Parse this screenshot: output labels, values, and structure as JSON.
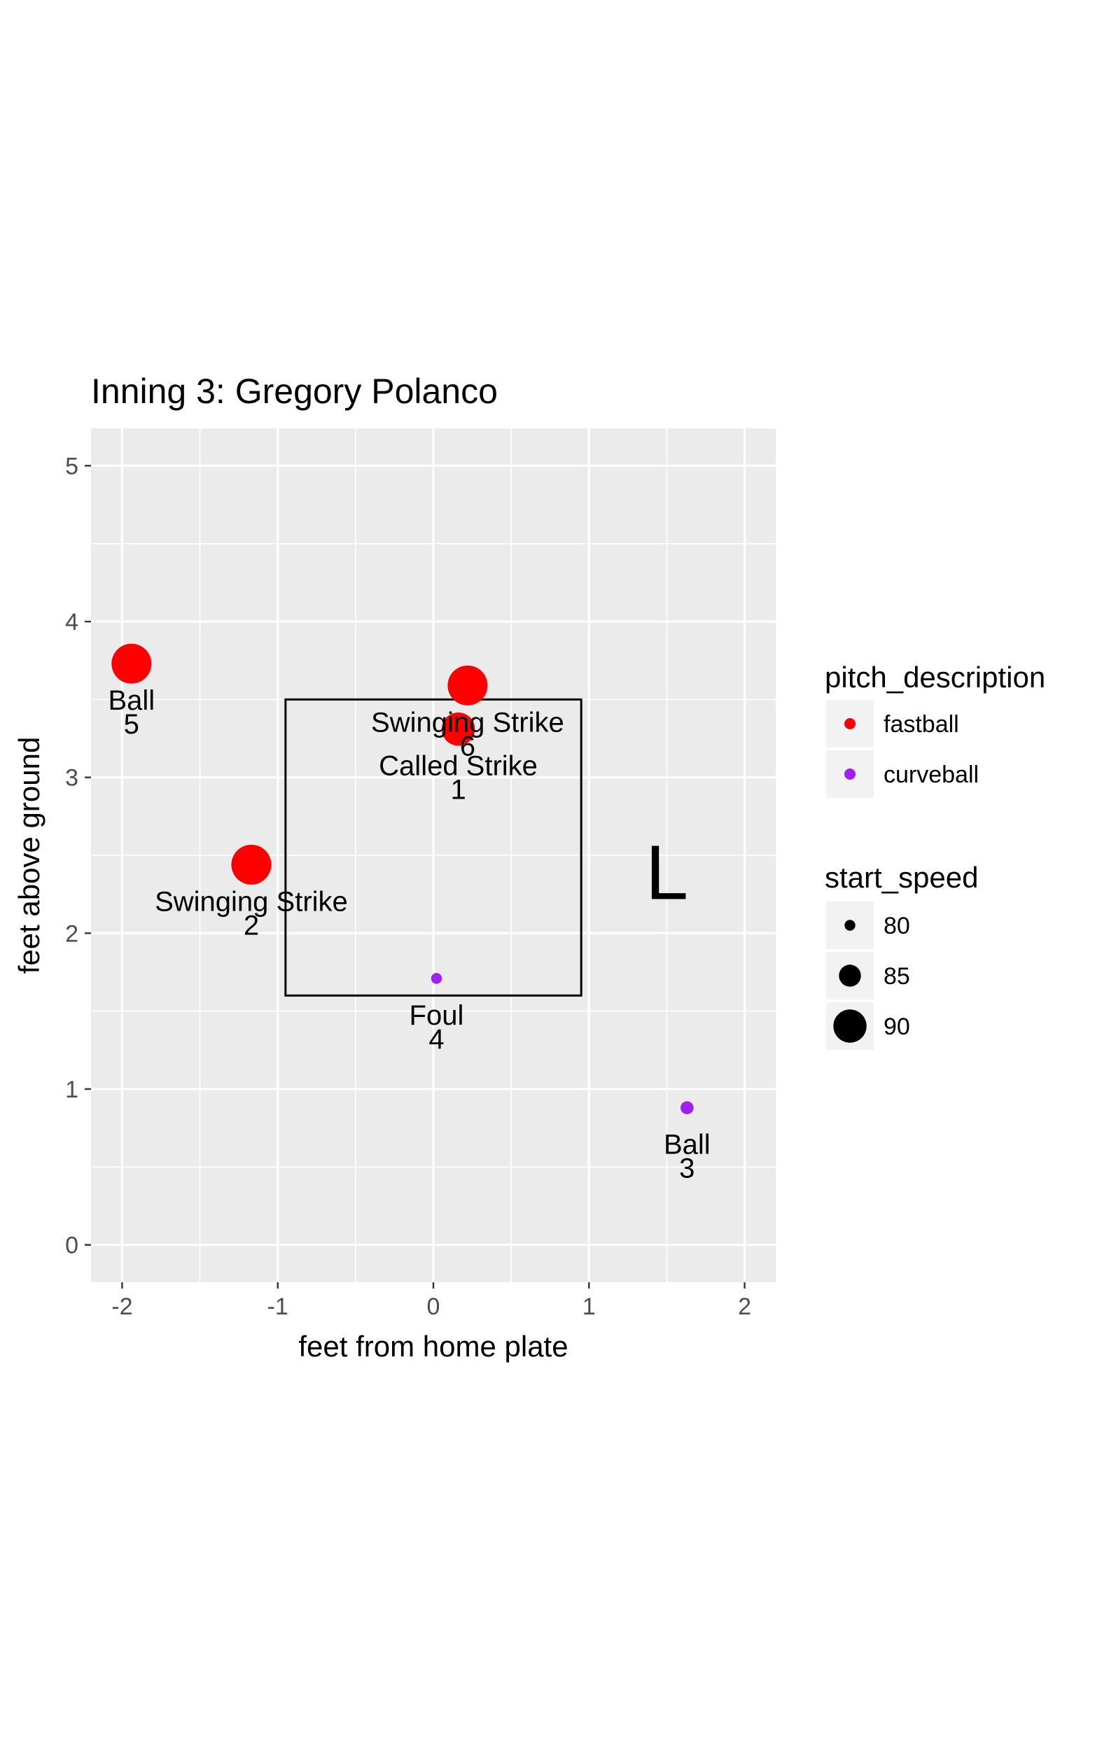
{
  "chart_data": {
    "type": "scatter",
    "title": "Inning 3: Gregory Polanco",
    "xlabel": "feet from home plate",
    "ylabel": "feet above ground",
    "xlim": [
      -2.2,
      2.2
    ],
    "ylim": [
      -0.24,
      5.24
    ],
    "x_ticks": [
      -2,
      -1,
      0,
      1,
      2
    ],
    "y_ticks": [
      0,
      1,
      2,
      3,
      4,
      5
    ],
    "grid": true,
    "strike_zone": {
      "x": [
        -0.95,
        0.95
      ],
      "y": [
        1.6,
        3.5
      ]
    },
    "annotation": {
      "text": "L",
      "x": 1.5,
      "y": 2.4
    },
    "colors": {
      "fastball": "#ff0000",
      "curveball": "#a020f0",
      "panel": "#ebebeb",
      "grid": "#ffffff"
    },
    "points": [
      {
        "x": 0.16,
        "y": 3.31,
        "description": "fastball",
        "speed": 90,
        "outcome": "Called Strike",
        "number": "1"
      },
      {
        "x": -1.17,
        "y": 2.44,
        "description": "fastball",
        "speed": 93,
        "outcome": "Swinging Strike",
        "number": "2"
      },
      {
        "x": 1.63,
        "y": 0.88,
        "description": "curveball",
        "speed": 81,
        "outcome": "Ball",
        "number": "3"
      },
      {
        "x": 0.02,
        "y": 1.71,
        "description": "curveball",
        "speed": 80,
        "outcome": "Foul",
        "number": "4"
      },
      {
        "x": -1.94,
        "y": 3.73,
        "description": "fastball",
        "speed": 93,
        "outcome": "Ball",
        "number": "5"
      },
      {
        "x": 0.22,
        "y": 3.59,
        "description": "fastball",
        "speed": 93,
        "outcome": "Swinging Strike",
        "number": "6"
      }
    ],
    "legend": {
      "placement": "right",
      "color_title": "pitch_description",
      "color_items": [
        {
          "label": "fastball",
          "color": "#ff0000"
        },
        {
          "label": "curveball",
          "color": "#a020f0"
        }
      ],
      "size_title": "start_speed",
      "size_items": [
        {
          "label": "80",
          "value": 80
        },
        {
          "label": "85",
          "value": 85
        },
        {
          "label": "90",
          "value": 90
        }
      ]
    }
  }
}
